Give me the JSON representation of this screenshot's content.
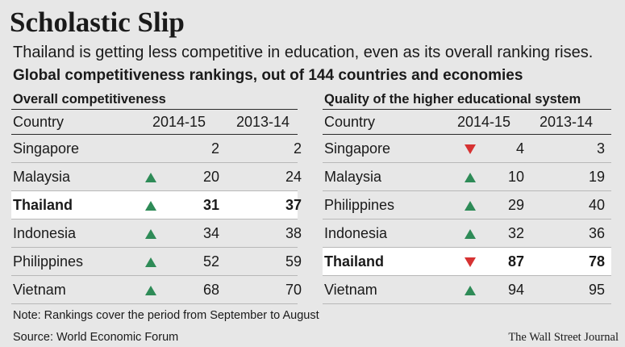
{
  "title": "Scholastic Slip",
  "subtitle": "Thailand is getting less competitive in education, even as its overall ranking rises.",
  "heading": "Global competitiveness rankings, out of 144 countries and economies",
  "note": "Note: Rankings cover the period from September to August",
  "source": "Source: World Economic Forum",
  "credit": "The Wall Street Journal",
  "colors": {
    "up": "#2e8b57",
    "down": "#d63232",
    "highlight": "#ffffff",
    "background": "#e7e7e7"
  },
  "chart_data": [
    {
      "type": "table",
      "title": "Overall competitiveness",
      "columns": [
        "Country",
        "2014-15",
        "2013-14"
      ],
      "rows": [
        {
          "country": "Singapore",
          "v2014": "2",
          "v2013": "2",
          "change": "none",
          "highlight": false
        },
        {
          "country": "Malaysia",
          "v2014": "20",
          "v2013": "24",
          "change": "up",
          "highlight": false
        },
        {
          "country": "Thailand",
          "v2014": "31",
          "v2013": "37",
          "change": "up",
          "highlight": true
        },
        {
          "country": "Indonesia",
          "v2014": "34",
          "v2013": "38",
          "change": "up",
          "highlight": false
        },
        {
          "country": "Philippines",
          "v2014": "52",
          "v2013": "59",
          "change": "up",
          "highlight": false
        },
        {
          "country": "Vietnam",
          "v2014": "68",
          "v2013": "70",
          "change": "up",
          "highlight": false
        }
      ]
    },
    {
      "type": "table",
      "title": "Quality of the higher educational system",
      "columns": [
        "Country",
        "2014-15",
        "2013-14"
      ],
      "rows": [
        {
          "country": "Singapore",
          "v2014": "4",
          "v2013": "3",
          "change": "down",
          "highlight": false
        },
        {
          "country": "Malaysia",
          "v2014": "10",
          "v2013": "19",
          "change": "up",
          "highlight": false
        },
        {
          "country": "Philippines",
          "v2014": "29",
          "v2013": "40",
          "change": "up",
          "highlight": false
        },
        {
          "country": "Indonesia",
          "v2014": "32",
          "v2013": "36",
          "change": "up",
          "highlight": false
        },
        {
          "country": "Thailand",
          "v2014": "87",
          "v2013": "78",
          "change": "down",
          "highlight": true
        },
        {
          "country": "Vietnam",
          "v2014": "94",
          "v2013": "95",
          "change": "up",
          "highlight": false
        }
      ]
    }
  ]
}
